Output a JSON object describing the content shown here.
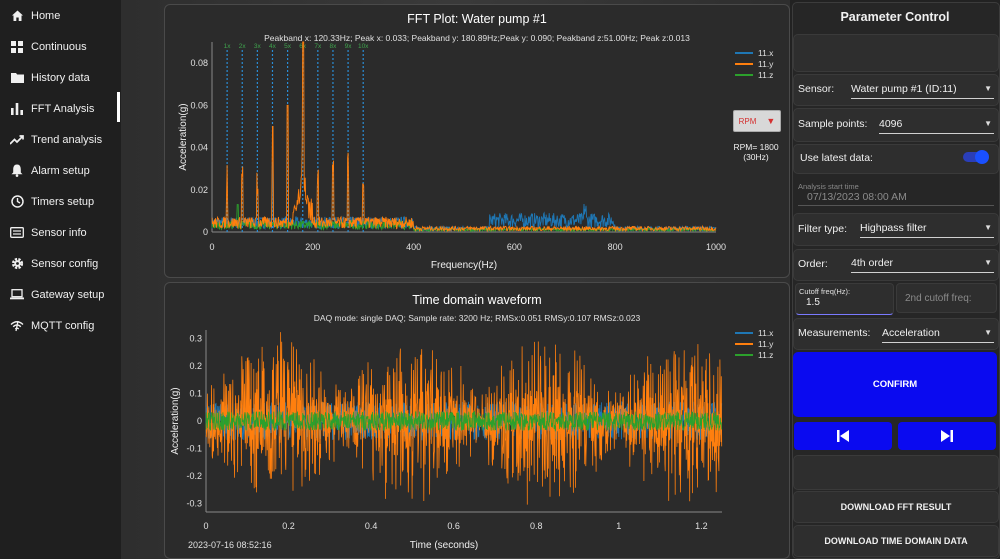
{
  "sidebar": {
    "items": [
      {
        "label": "Home",
        "icon": "home-icon"
      },
      {
        "label": "Continuous",
        "icon": "grid-icon"
      },
      {
        "label": "History data",
        "icon": "folder-icon"
      },
      {
        "label": "FFT Analysis",
        "icon": "bar-chart-icon"
      },
      {
        "label": "Trend analysis",
        "icon": "trend-icon"
      },
      {
        "label": "Alarm setup",
        "icon": "bell-icon"
      },
      {
        "label": "Timers setup",
        "icon": "clock-icon"
      },
      {
        "label": "Sensor info",
        "icon": "list-icon"
      },
      {
        "label": "Sensor config",
        "icon": "gear-icon"
      },
      {
        "label": "Gateway setup",
        "icon": "laptop-icon"
      },
      {
        "label": "MQTT config",
        "icon": "wifi-icon"
      }
    ],
    "active_index": 3
  },
  "fft": {
    "title": "FFT Plot: Water pump #1",
    "subtitle": "Peakband x: 120.33Hz; Peak x: 0.033; Peakband y: 180.89Hz;Peak y: 0.090; Peakband z:51.00Hz; Peak z:0.013",
    "rpm_button": "RPM",
    "rpm_line1": "RPM= 1800",
    "rpm_line2": "(30Hz)"
  },
  "time": {
    "title": "Time domain waveform",
    "subtitle": "DAQ mode: single DAQ; Sample rate: 3200 Hz; RMSx:0.051 RMSy:0.107 RMSz:0.023",
    "timestamp": "2023-07-16 08:52:16"
  },
  "colors": {
    "x": "#1f77b4",
    "y": "#ff7f0e",
    "z": "#2ca02c",
    "accent": "#0a0af0"
  },
  "chart_data": [
    {
      "type": "line",
      "title": "FFT Plot: Water pump #1",
      "xlabel": "Frequency(Hz)",
      "ylabel": "Acceleration(g)",
      "xlim": [
        0,
        1000
      ],
      "ylim": [
        0,
        0.09
      ],
      "x_ticks": [
        "0",
        "200",
        "400",
        "600",
        "800",
        "1000"
      ],
      "y_ticks": [
        "0",
        "0.02",
        "0.04",
        "0.06",
        "0.08"
      ],
      "harmonic_markers": [
        "1x",
        "2x",
        "3x",
        "4x",
        "5x",
        "6x",
        "7x",
        "8x",
        "9x",
        "10x"
      ],
      "harmonic_freqs": [
        30,
        60,
        90,
        120,
        150,
        180,
        210,
        240,
        270,
        300
      ],
      "legend": [
        "11.x",
        "11.y",
        "11.z"
      ],
      "peaks": [
        {
          "series": "11.y",
          "x": 180.89,
          "y": 0.09
        },
        {
          "series": "11.x",
          "x": 120.33,
          "y": 0.033
        },
        {
          "series": "11.z",
          "x": 51.0,
          "y": 0.013
        }
      ],
      "series": [
        {
          "name": "11.x",
          "x": [
            0,
            100,
            120,
            180,
            300,
            500,
            700,
            740,
            800,
            1000
          ],
          "y": [
            0.001,
            0.002,
            0.033,
            0.01,
            0.003,
            0.002,
            0.006,
            0.003,
            0.002,
            0.001
          ]
        },
        {
          "name": "11.y",
          "x": [
            0,
            30,
            60,
            120,
            150,
            180,
            240,
            300,
            400,
            1000
          ],
          "y": [
            0.002,
            0.012,
            0.008,
            0.05,
            0.03,
            0.09,
            0.015,
            0.01,
            0.004,
            0.001
          ]
        },
        {
          "name": "11.z",
          "x": [
            0,
            51,
            120,
            180,
            300,
            500,
            1000
          ],
          "y": [
            0.001,
            0.013,
            0.006,
            0.005,
            0.003,
            0.002,
            0.001
          ]
        }
      ]
    },
    {
      "type": "line",
      "title": "Time domain waveform",
      "xlabel": "Time (seconds)",
      "ylabel": "Acceleration(g)",
      "xlim": [
        0,
        1.25
      ],
      "ylim": [
        -0.33,
        0.33
      ],
      "x_ticks": [
        "0",
        "0.2",
        "0.4",
        "0.6",
        "0.8",
        "1",
        "1.2"
      ],
      "y_ticks": [
        "0.3",
        "0.2",
        "0.1",
        "0",
        "-0.1",
        "-0.2",
        "-0.3"
      ],
      "legend": [
        "11.x",
        "11.y",
        "11.z"
      ],
      "series": [
        {
          "name": "11.x",
          "rms": 0.051
        },
        {
          "name": "11.y",
          "rms": 0.107
        },
        {
          "name": "11.z",
          "rms": 0.023
        }
      ]
    }
  ],
  "params": {
    "header": "Parameter Control",
    "sensor_label": "Sensor:",
    "sensor_value": "Water pump #1 (ID:11)",
    "points_label": "Sample points:",
    "points_value": "4096",
    "latest_label": "Use latest data:",
    "latest_on": true,
    "start_time_label": "Analysis start time",
    "start_time_value": "07/13/2023 08:00 AM",
    "filter_label": "Filter type:",
    "filter_value": "Highpass filter",
    "order_label": "Order:",
    "order_value": "4th order",
    "cutoff_label": "Cutoff freq(Hz):",
    "cutoff_value": "1.5",
    "cutoff2_placeholder": "2nd cutoff freq:",
    "measure_label": "Measurements:",
    "measure_value": "Acceleration",
    "confirm": "CONFIRM",
    "download_fft": "DOWNLOAD FFT RESULT",
    "download_time": "DOWNLOAD TIME DOMAIN DATA"
  }
}
